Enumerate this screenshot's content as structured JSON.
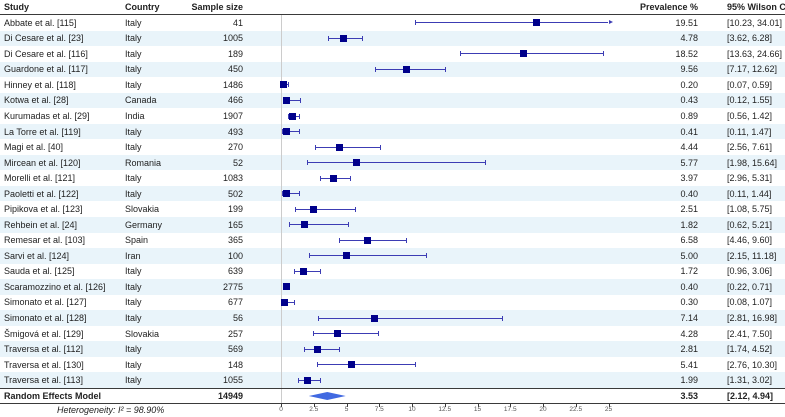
{
  "header": {
    "study": "Study",
    "country": "Country",
    "sample_size": "Sample size",
    "prevalence": "Prevalence %",
    "ci": "95% Wilson CI"
  },
  "footer": {
    "heterogeneity": "Heterogeneity:  I² = 98.90%"
  },
  "chart_data": {
    "type": "forest",
    "xlabel": "",
    "xlim": [
      0,
      25
    ],
    "ticks": [
      0,
      2.5,
      5,
      7.5,
      10,
      12.5,
      15,
      17.5,
      20,
      22.5,
      25
    ],
    "studies": [
      {
        "study": "Abbate et al. [115]",
        "country": "Italy",
        "n": 41,
        "prev": 19.51,
        "lo": 10.23,
        "hi": 34.01
      },
      {
        "study": "Di Cesare et al. [23]",
        "country": "Italy",
        "n": 1005,
        "prev": 4.78,
        "lo": 3.62,
        "hi": 6.28
      },
      {
        "study": "Di Cesare et al. [116]",
        "country": "Italy",
        "n": 189,
        "prev": 18.52,
        "lo": 13.63,
        "hi": 24.66
      },
      {
        "study": "Guardone et al. [117]",
        "country": "Italy",
        "n": 450,
        "prev": 9.56,
        "lo": 7.17,
        "hi": 12.62
      },
      {
        "study": "Hinney et al. [118]",
        "country": "Italy",
        "n": 1486,
        "prev": 0.2,
        "lo": 0.07,
        "hi": 0.59
      },
      {
        "study": "Kotwa et al. [28]",
        "country": "Canada",
        "n": 466,
        "prev": 0.43,
        "lo": 0.12,
        "hi": 1.55
      },
      {
        "study": "Kurumadas et al. [29]",
        "country": "India",
        "n": 1907,
        "prev": 0.89,
        "lo": 0.56,
        "hi": 1.42
      },
      {
        "study": "La Torre et al. [119]",
        "country": "Italy",
        "n": 493,
        "prev": 0.41,
        "lo": 0.11,
        "hi": 1.47
      },
      {
        "study": "Magi et al. [40]",
        "country": "Italy",
        "n": 270,
        "prev": 4.44,
        "lo": 2.56,
        "hi": 7.61
      },
      {
        "study": "Mircean et al. [120]",
        "country": "Romania",
        "n": 52,
        "prev": 5.77,
        "lo": 1.98,
        "hi": 15.64
      },
      {
        "study": "Morelli et al. [121]",
        "country": "Italy",
        "n": 1083,
        "prev": 3.97,
        "lo": 2.96,
        "hi": 5.31
      },
      {
        "study": "Paoletti et al. [122]",
        "country": "Italy",
        "n": 502,
        "prev": 0.4,
        "lo": 0.11,
        "hi": 1.44
      },
      {
        "study": "Pipikova et al. [123]",
        "country": "Slovakia",
        "n": 199,
        "prev": 2.51,
        "lo": 1.08,
        "hi": 5.75
      },
      {
        "study": "Rehbein et al. [24]",
        "country": "Germany",
        "n": 165,
        "prev": 1.82,
        "lo": 0.62,
        "hi": 5.21
      },
      {
        "study": "Remesar et al. [103]",
        "country": "Spain",
        "n": 365,
        "prev": 6.58,
        "lo": 4.46,
        "hi": 9.6
      },
      {
        "study": "Sarvi et al. [124]",
        "country": "Iran",
        "n": 100,
        "prev": 5.0,
        "lo": 2.15,
        "hi": 11.18
      },
      {
        "study": "Sauda et al. [125]",
        "country": "Italy",
        "n": 639,
        "prev": 1.72,
        "lo": 0.96,
        "hi": 3.06
      },
      {
        "study": "Scaramozzino et al. [126]",
        "country": "Italy",
        "n": 2775,
        "prev": 0.4,
        "lo": 0.22,
        "hi": 0.71
      },
      {
        "study": "Simonato et al. [127]",
        "country": "Italy",
        "n": 677,
        "prev": 0.3,
        "lo": 0.08,
        "hi": 1.07
      },
      {
        "study": "Simonato et al. [128]",
        "country": "Italy",
        "n": 56,
        "prev": 7.14,
        "lo": 2.81,
        "hi": 16.98
      },
      {
        "study": "Šmigová et al. [129]",
        "country": "Slovakia",
        "n": 257,
        "prev": 4.28,
        "lo": 2.41,
        "hi": 7.5
      },
      {
        "study": "Traversa et al. [112]",
        "country": "Italy",
        "n": 569,
        "prev": 2.81,
        "lo": 1.74,
        "hi": 4.52
      },
      {
        "study": "Traversa et al. [130]",
        "country": "Italy",
        "n": 148,
        "prev": 5.41,
        "lo": 2.76,
        "hi": 10.3
      },
      {
        "study": "Traversa et al. [113]",
        "country": "Italy",
        "n": 1055,
        "prev": 1.99,
        "lo": 1.31,
        "hi": 3.02
      }
    ],
    "summary": {
      "study": "Random Effects Model",
      "n": 14949,
      "prev": 3.53,
      "lo": 2.12,
      "hi": 4.94
    }
  },
  "colors": {
    "marker": "#00008b",
    "ci_line": "#3c3cb4",
    "diamond": "#4169e1",
    "stripe": "#e9f4fa",
    "rule": "#3a3a3a",
    "zero_line": "#cccccc",
    "tick_text": "#555555"
  }
}
